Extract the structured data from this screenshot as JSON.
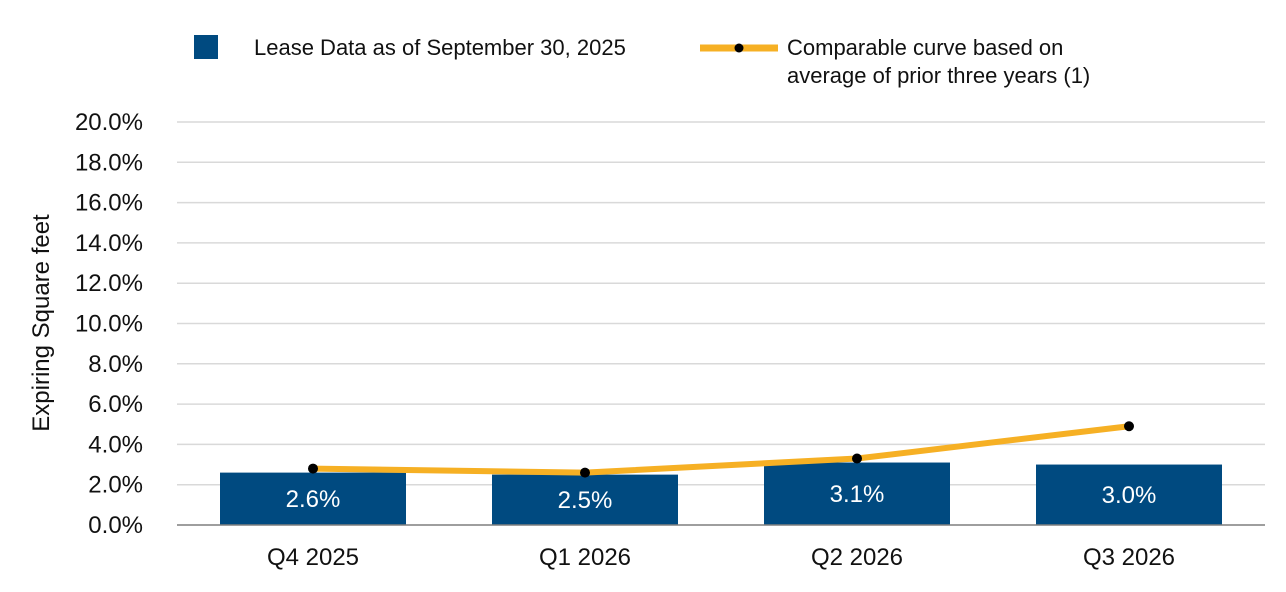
{
  "chart_data": {
    "type": "bar",
    "categories": [
      "Q4 2025",
      "Q1 2026",
      "Q2 2026",
      "Q3 2026"
    ],
    "series": [
      {
        "name": "Lease Data as of September 30, 2025",
        "kind": "bar",
        "values": [
          2.6,
          2.5,
          3.1,
          3.0
        ],
        "data_labels": [
          "2.6%",
          "2.5%",
          "3.1%",
          "3.0%"
        ],
        "color": "#004a80"
      },
      {
        "name": "Comparable curve based on average of prior three years (1)",
        "name_lines": [
          "Comparable curve based on",
          "average of prior three years (1)"
        ],
        "kind": "line",
        "values": [
          2.8,
          2.6,
          3.3,
          4.9
        ],
        "color": "#f6b024",
        "marker_color": "#000000"
      }
    ],
    "ylabel": "Expiring Square feet",
    "xlabel": "",
    "ylim": [
      0,
      20
    ],
    "yticks": [
      0,
      2,
      4,
      6,
      8,
      10,
      12,
      14,
      16,
      18,
      20
    ],
    "ytick_labels": [
      "0.0%",
      "2.0%",
      "4.0%",
      "6.0%",
      "8.0%",
      "10.0%",
      "12.0%",
      "14.0%",
      "16.0%",
      "18.0%",
      "20.0%"
    ],
    "grid": true,
    "legend_position": "top"
  }
}
